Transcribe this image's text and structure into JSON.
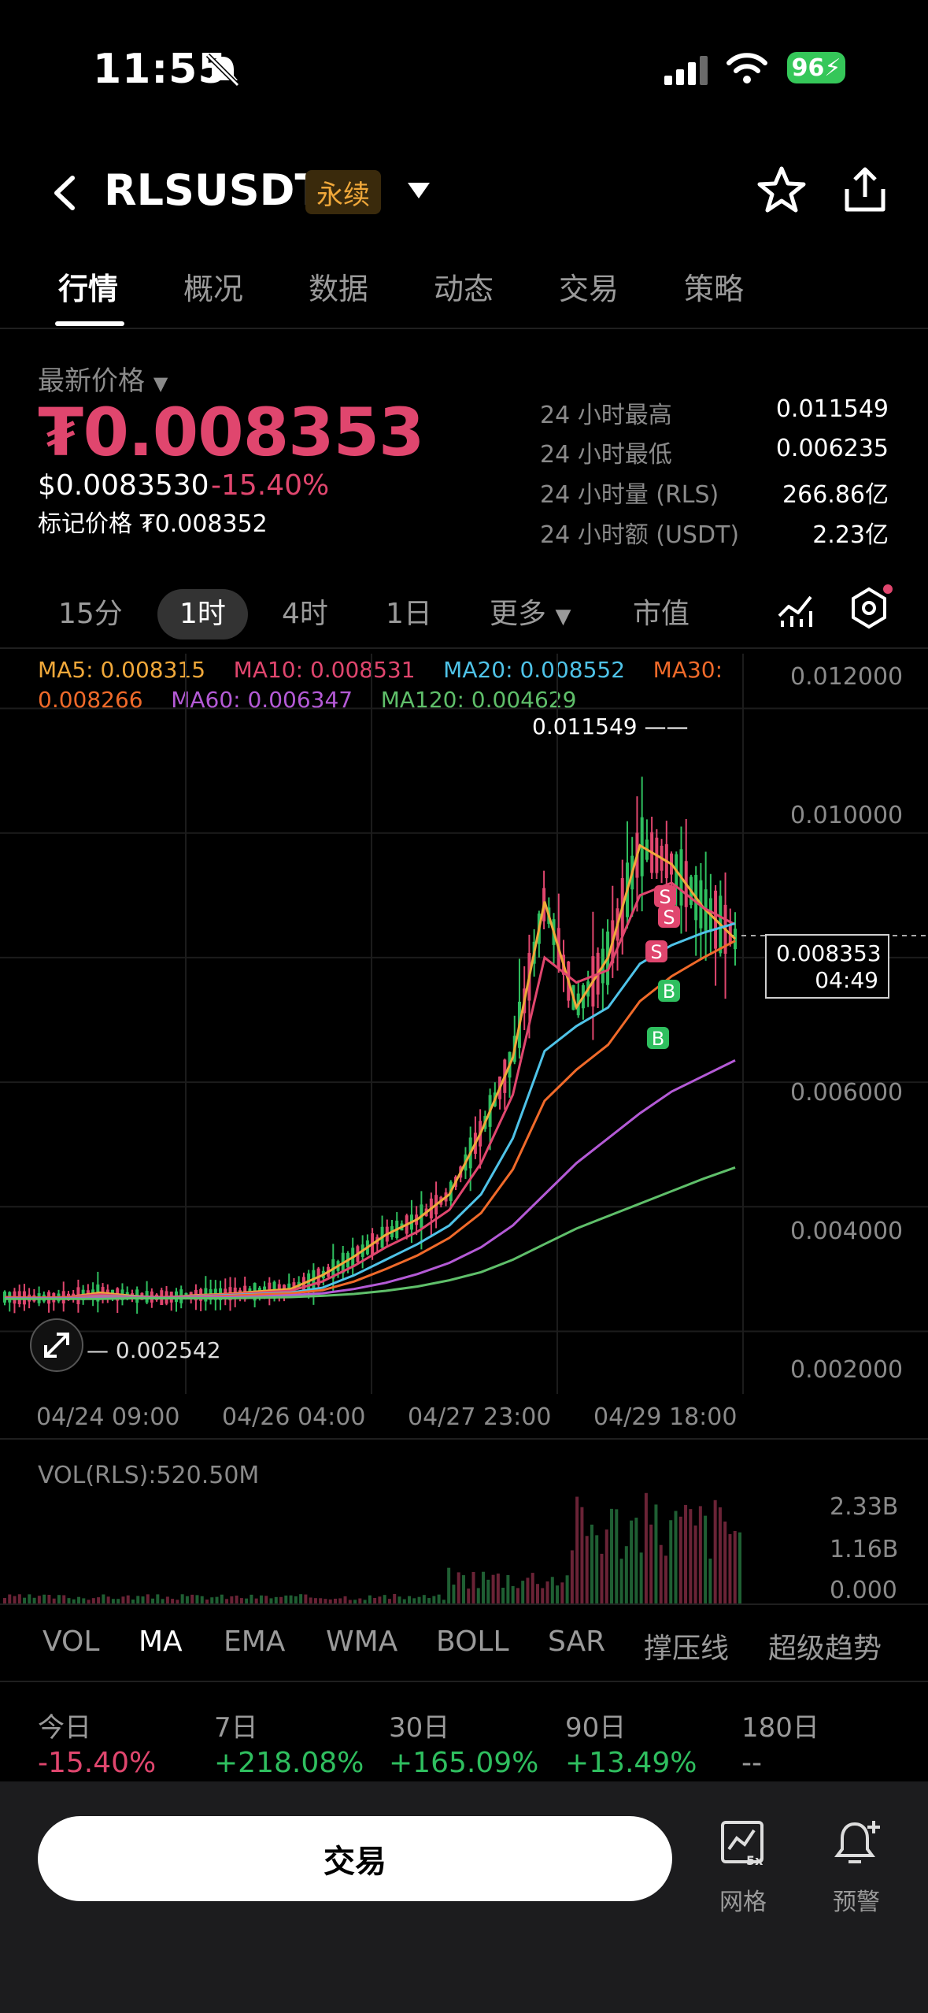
{
  "status_bar": {
    "time": "11:55",
    "battery": "96"
  },
  "header": {
    "pair": "RLSUSDT",
    "tag": "永续"
  },
  "tabs": [
    "行情",
    "概况",
    "数据",
    "动态",
    "交易",
    "策略"
  ],
  "price": {
    "label": "最新价格",
    "last": "₮0.008353",
    "usd": "$0.0083530",
    "change": "-15.40%",
    "mark": "标记价格 ₮0.008352"
  },
  "stats": [
    {
      "label": "24 小时最高",
      "value": "0.011549"
    },
    {
      "label": "24 小时最低",
      "value": "0.006235"
    },
    {
      "label": "24 小时量 (RLS)",
      "value": "266.86亿"
    },
    {
      "label": "24 小时额 (USDT)",
      "value": "2.23亿"
    }
  ],
  "timeframes": [
    "15分",
    "1时",
    "4时",
    "1日",
    "更多",
    "市值"
  ],
  "ma_legend": {
    "ma5": "MA5: 0.008315",
    "ma10": "MA10: 0.008531",
    "ma20": "MA20: 0.008552",
    "ma30_label": "MA30:",
    "ma30_value": "0.008266",
    "ma60": "MA60: 0.006347",
    "ma120": "MA120: 0.004629"
  },
  "colors": {
    "ma5": "#f0a83a",
    "ma10": "#e0466e",
    "ma20": "#4fc3e8",
    "ma30": "#f06a2a",
    "ma60": "#b45ad6",
    "ma120": "#5fbf6a",
    "up": "#2fbf5f",
    "down": "#e0466e"
  },
  "chart_data": {
    "type": "line",
    "y_axis_ticks": [
      "0.012000",
      "0.010000",
      "0.006000",
      "0.004000",
      "0.002000"
    ],
    "x_axis_ticks": [
      "04/24 09:00",
      "04/26 04:00",
      "04/27 23:00",
      "04/29 18:00"
    ],
    "ylim": [
      0.0015,
      0.0125
    ],
    "high_label": "0.011549",
    "low_label": "0.002542",
    "current_price": "0.008353",
    "countdown": "04:49",
    "markers": [
      "S",
      "S",
      "S",
      "B",
      "B"
    ],
    "series": [
      {
        "name": "MA5",
        "values": [
          0.00255,
          0.00253,
          0.00255,
          0.00262,
          0.00257,
          0.00254,
          0.00258,
          0.0026,
          0.00264,
          0.00268,
          0.0029,
          0.0032,
          0.00355,
          0.0038,
          0.0042,
          0.0052,
          0.0064,
          0.0089,
          0.0072,
          0.008,
          0.0098,
          0.0095,
          0.0088,
          0.0083
        ]
      },
      {
        "name": "MA10",
        "values": [
          0.00255,
          0.00254,
          0.00255,
          0.00259,
          0.00256,
          0.00255,
          0.00257,
          0.00259,
          0.00262,
          0.00265,
          0.0028,
          0.00305,
          0.00335,
          0.0036,
          0.00395,
          0.0047,
          0.0058,
          0.008,
          0.0076,
          0.0078,
          0.009,
          0.0092,
          0.0088,
          0.00853
        ]
      },
      {
        "name": "MA20",
        "values": [
          0.00254,
          0.00254,
          0.00254,
          0.00256,
          0.00256,
          0.00255,
          0.00256,
          0.00258,
          0.0026,
          0.00262,
          0.0027,
          0.0029,
          0.00315,
          0.0034,
          0.0037,
          0.0042,
          0.0051,
          0.0065,
          0.0069,
          0.0072,
          0.0079,
          0.0082,
          0.0084,
          0.00855
        ]
      },
      {
        "name": "MA30",
        "values": [
          0.00254,
          0.00254,
          0.00254,
          0.00255,
          0.00255,
          0.00255,
          0.00255,
          0.00257,
          0.00259,
          0.00261,
          0.00266,
          0.0028,
          0.003,
          0.00322,
          0.0035,
          0.0039,
          0.0046,
          0.0057,
          0.0062,
          0.0066,
          0.0073,
          0.0077,
          0.008,
          0.00827
        ]
      },
      {
        "name": "MA60",
        "values": [
          0.00253,
          0.00253,
          0.00253,
          0.00254,
          0.00254,
          0.00254,
          0.00254,
          0.00255,
          0.00256,
          0.00258,
          0.00261,
          0.00268,
          0.00278,
          0.00292,
          0.0031,
          0.00335,
          0.0037,
          0.0042,
          0.0047,
          0.0051,
          0.0055,
          0.00585,
          0.0061,
          0.00635
        ]
      },
      {
        "name": "MA120",
        "values": [
          0.00252,
          0.00252,
          0.00252,
          0.00252,
          0.00253,
          0.00253,
          0.00253,
          0.00253,
          0.00254,
          0.00255,
          0.00257,
          0.0026,
          0.00265,
          0.00272,
          0.00282,
          0.00295,
          0.00315,
          0.0034,
          0.00365,
          0.00385,
          0.00405,
          0.00425,
          0.00445,
          0.00463
        ]
      }
    ]
  },
  "volume": {
    "label": "VOL(RLS):520.50M",
    "ticks": [
      "2.33B",
      "1.16B",
      "0.000"
    ]
  },
  "indicators": [
    "VOL",
    "MA",
    "EMA",
    "WMA",
    "BOLL",
    "SAR",
    "撑压线",
    "超级趋势"
  ],
  "performance": [
    {
      "label": "今日",
      "value": "-15.40%",
      "color": "#e0466e"
    },
    {
      "label": "7日",
      "value": "+218.08%",
      "color": "#2fbf5f"
    },
    {
      "label": "30日",
      "value": "+165.09%",
      "color": "#2fbf5f"
    },
    {
      "label": "90日",
      "value": "+13.49%",
      "color": "#2fbf5f"
    },
    {
      "label": "180日",
      "value": "--",
      "color": "#9a9a9a"
    }
  ],
  "bottom": {
    "trade": "交易",
    "grid": "网格",
    "alert": "预警",
    "grid_badge": "5x"
  }
}
